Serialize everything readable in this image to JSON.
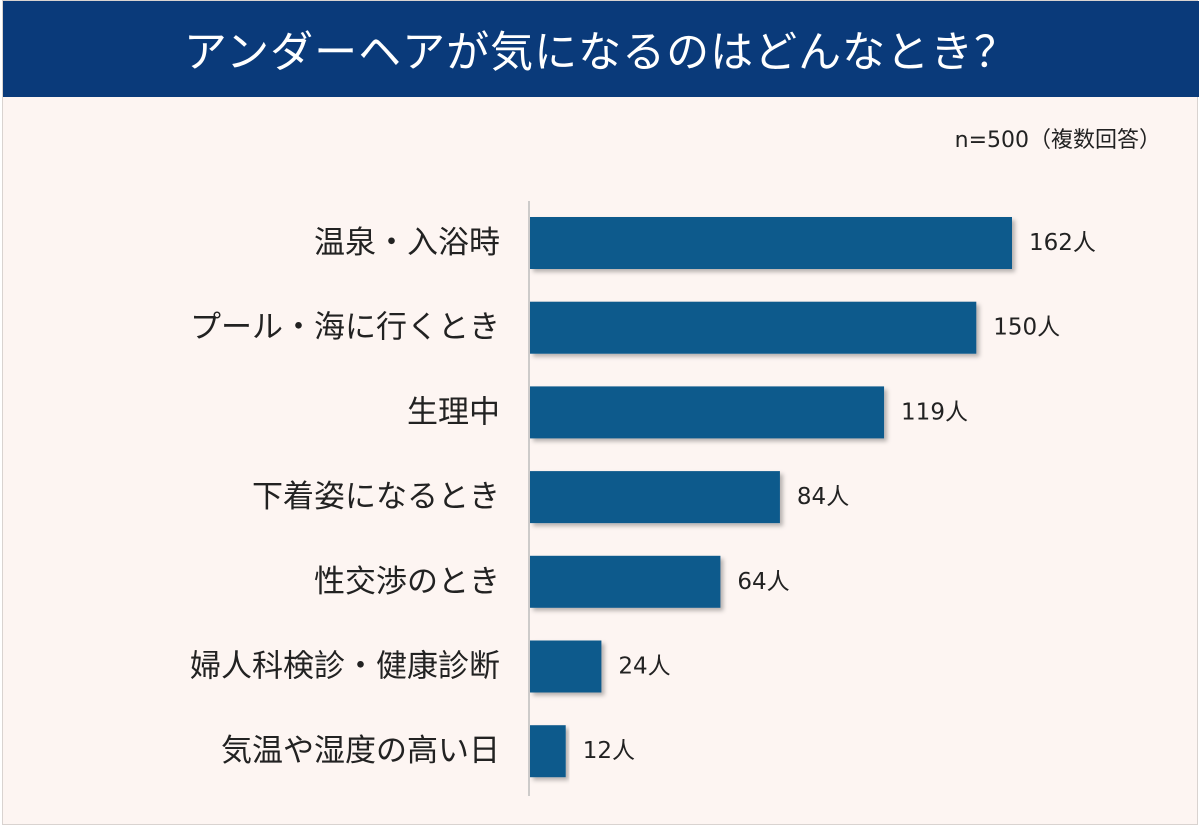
{
  "title": "アンダーヘアが気になるのはどんなとき？",
  "note": "n=500（複数回答）",
  "chart_data": {
    "type": "bar",
    "orientation": "horizontal",
    "title": "アンダーヘアが気になるのはどんなとき？",
    "xlabel": "",
    "ylabel": "",
    "unit": "人",
    "categories": [
      "温泉・入浴時",
      "プール・海に行くとき",
      "生理中",
      "下着姿になるとき",
      "性交渉のとき",
      "婦人科検診・健康診断",
      "気温や湿度の高い日"
    ],
    "values": [
      162,
      150,
      119,
      84,
      64,
      24,
      12
    ],
    "value_labels": [
      "162人",
      "150人",
      "119人",
      "84人",
      "64人",
      "24人",
      "12人"
    ],
    "xlim": [
      0,
      162
    ],
    "grid": false,
    "legend": "none",
    "bar_color": "#0f5a8c"
  },
  "colors": {
    "header_bg": "#0a3a7a",
    "panel_bg": "#fdf5f2",
    "bar": "#0f5a8c"
  }
}
